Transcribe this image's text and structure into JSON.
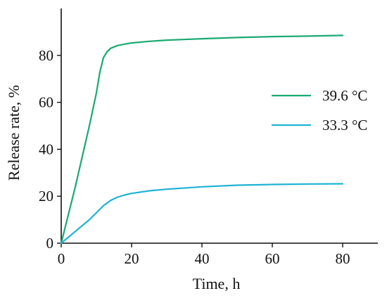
{
  "chart_data": {
    "type": "line",
    "title": "",
    "xlabel": "Time, h",
    "ylabel": "Release rate, %",
    "xlim": [
      0,
      90
    ],
    "ylim": [
      0,
      100
    ],
    "xticks": [
      0,
      20,
      40,
      60,
      80
    ],
    "yticks": [
      0,
      20,
      40,
      60,
      80
    ],
    "grid": false,
    "legend_position": "right",
    "series": [
      {
        "name": "39.6 °C",
        "color": "#1aaa72",
        "x": [
          0,
          2,
          4,
          6,
          8,
          10,
          11,
          12,
          13,
          14,
          16,
          18,
          20,
          25,
          30,
          40,
          50,
          60,
          70,
          80
        ],
        "y": [
          0,
          12,
          24,
          37,
          50,
          64,
          73,
          79,
          81.5,
          83,
          84.2,
          84.8,
          85.3,
          86,
          86.5,
          87.1,
          87.6,
          88,
          88.2,
          88.5
        ]
      },
      {
        "name": "33.3 °C",
        "color": "#1fb3d3",
        "x": [
          0,
          2,
          4,
          6,
          8,
          10,
          12,
          14,
          16,
          18,
          20,
          25,
          30,
          40,
          50,
          60,
          70,
          80
        ],
        "y": [
          0,
          2.5,
          5,
          7.5,
          10,
          13,
          16,
          18.2,
          19.6,
          20.5,
          21.2,
          22.3,
          23,
          24,
          24.7,
          25,
          25.2,
          25.3
        ]
      }
    ]
  }
}
